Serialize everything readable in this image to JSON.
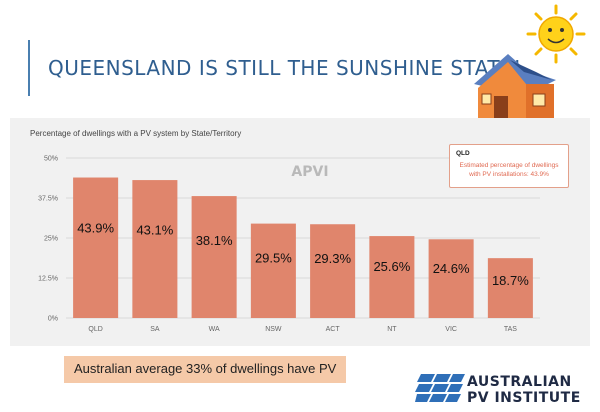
{
  "slide": {
    "title": "QUEENSLAND IS STILL THE SUNSHINE STATE!",
    "average_note": "Australian average 33% of dwellings have PV"
  },
  "logo": {
    "line1": "AUSTRALIAN",
    "line2": "PV INSTITUTE"
  },
  "watermark": "APVI",
  "tooltip": {
    "heading": "QLD",
    "line1": "Estimated percentage of dwellings",
    "line2": "with PV installations: 43.9%"
  },
  "chart_data": {
    "type": "bar",
    "title": "Percentage of dwellings with a PV system by State/Territory",
    "categories": [
      "QLD",
      "SA",
      "WA",
      "NSW",
      "ACT",
      "NT",
      "VIC",
      "TAS"
    ],
    "values": [
      43.9,
      43.1,
      38.1,
      29.5,
      29.3,
      25.6,
      24.6,
      18.7
    ],
    "data_labels": [
      "43.9%",
      "43.1%",
      "38.1%",
      "29.5%",
      "29.3%",
      "25.6%",
      "24.6%",
      "18.7%"
    ],
    "ylim": [
      0,
      50
    ],
    "yticks": [
      0,
      12.5,
      25,
      37.5,
      50
    ],
    "ytick_labels": [
      "0%",
      "12.5%",
      "25%",
      "37.5%",
      "50%"
    ],
    "grid": true,
    "colors": {
      "bar": "#e0856c",
      "grid": "#d9d9d9"
    }
  }
}
